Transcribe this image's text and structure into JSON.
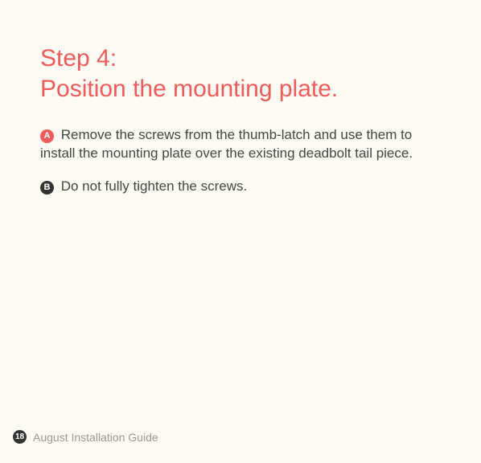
{
  "header": {
    "step_label": "Step 4:",
    "step_title": "Position the mounting plate."
  },
  "instructions": {
    "a": {
      "badge_letter": "A",
      "text": " Remove the screws from the thumb-latch and use them to install the mounting plate over the existing deadbolt tail piece."
    },
    "b": {
      "badge_letter": "B",
      "text": " Do not fully tighten the screws."
    }
  },
  "footer": {
    "page_number": "18",
    "guide_title": "August Installation Guide"
  },
  "colors": {
    "background": "#fbfaf3",
    "accent": "#ef5a5a",
    "dark_badge": "#333333",
    "body_text": "#454545",
    "footer_text": "#9a9a92"
  },
  "typography": {
    "heading_fontsize": 30,
    "body_fontsize": 17,
    "footer_fontsize": 14,
    "badge_fontsize": 11
  }
}
